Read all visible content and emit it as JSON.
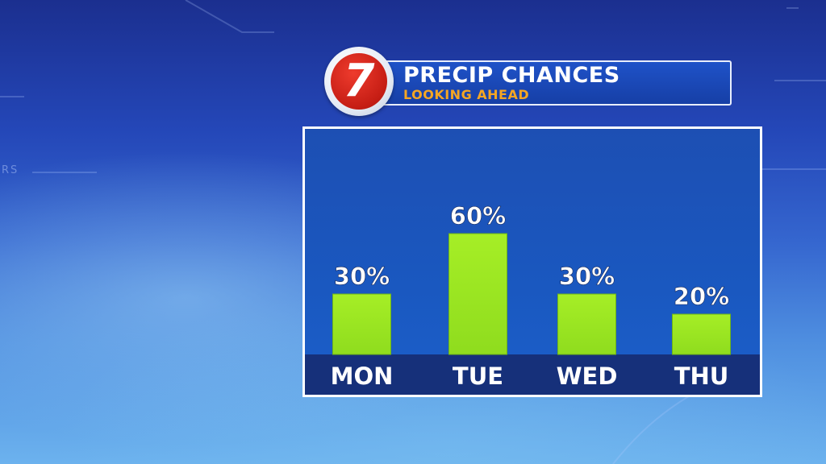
{
  "header": {
    "logo_text": "7",
    "title": "PRECIP CHANCES",
    "subtitle": "LOOKING AHEAD"
  },
  "background": {
    "mark_text": "RS"
  },
  "colors": {
    "bar": "#8fdc1e",
    "panel": "#1d56bd",
    "label_band": "#16307a",
    "title_text": "#ffffff",
    "subtitle_text": "#f5a623",
    "logo_red": "#d2241a"
  },
  "chart_data": {
    "type": "bar",
    "categories": [
      "MON",
      "TUE",
      "WED",
      "THU"
    ],
    "values": [
      30,
      60,
      30,
      20
    ],
    "data_labels": [
      "30%",
      "60%",
      "30%",
      "20%"
    ],
    "title": "PRECIP CHANCES",
    "subtitle": "LOOKING AHEAD",
    "xlabel": "",
    "ylabel": "",
    "ylim": [
      0,
      100
    ],
    "grid": false,
    "legend": "none"
  }
}
